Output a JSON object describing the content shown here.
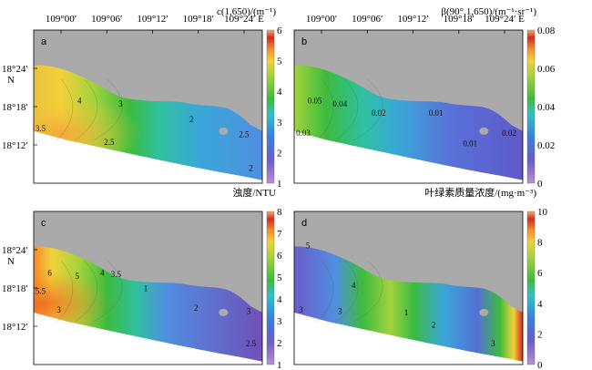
{
  "chart_data": {
    "type": "heatmap",
    "top_longitude_ticks": [
      "109°00′",
      "109°06′",
      "109°12′",
      "109°18′",
      "109°24′ E"
    ],
    "latitude_ticks": [
      "18°24′",
      "18°18′",
      "18°12′"
    ],
    "latitude_unit": "N",
    "colormap": [
      "#7a52a8",
      "#5470d6",
      "#3aa8d8",
      "#2fc1a0",
      "#3dbb3e",
      "#a2d33c",
      "#f2d23a",
      "#f48a2b",
      "#d42a1f",
      "#f0b070"
    ],
    "land_color": "#aaaaaa",
    "panels": [
      {
        "label": "a",
        "colorbar_title": "c(1,650)/(m⁻¹)",
        "colorbar_ticks": [
          "6",
          "5",
          "4",
          "3",
          "2",
          "1"
        ],
        "contour_labels": [
          "4",
          "3",
          "3.5",
          "2.5",
          "2",
          "2.5",
          "2"
        ]
      },
      {
        "label": "b",
        "colorbar_title": "β(90°,1,650)/(m⁻¹·sr⁻¹)",
        "colorbar_ticks": [
          "0.08",
          "0.06",
          "0.04",
          "0.02",
          "0"
        ],
        "contour_labels": [
          "0.05",
          "0.04",
          "0.03",
          "0.02",
          "0.01",
          "0.01",
          "0.02"
        ]
      },
      {
        "label": "c",
        "colorbar_title": "浊度/NTU",
        "colorbar_ticks": [
          "8",
          "7",
          "6",
          "5",
          "4",
          "3",
          "2",
          "1"
        ],
        "contour_labels": [
          "6",
          "5",
          "5.5",
          "4",
          "3.5",
          "3",
          "1",
          "2",
          "3",
          "2.5"
        ]
      },
      {
        "label": "d",
        "colorbar_title": "叶绿素质量浓度/(mg·m⁻³)",
        "colorbar_ticks": [
          "10",
          "8",
          "6",
          "4",
          "2",
          "0"
        ],
        "contour_labels": [
          "5",
          "4",
          "3",
          "3",
          "1",
          "2",
          "3"
        ]
      }
    ]
  }
}
